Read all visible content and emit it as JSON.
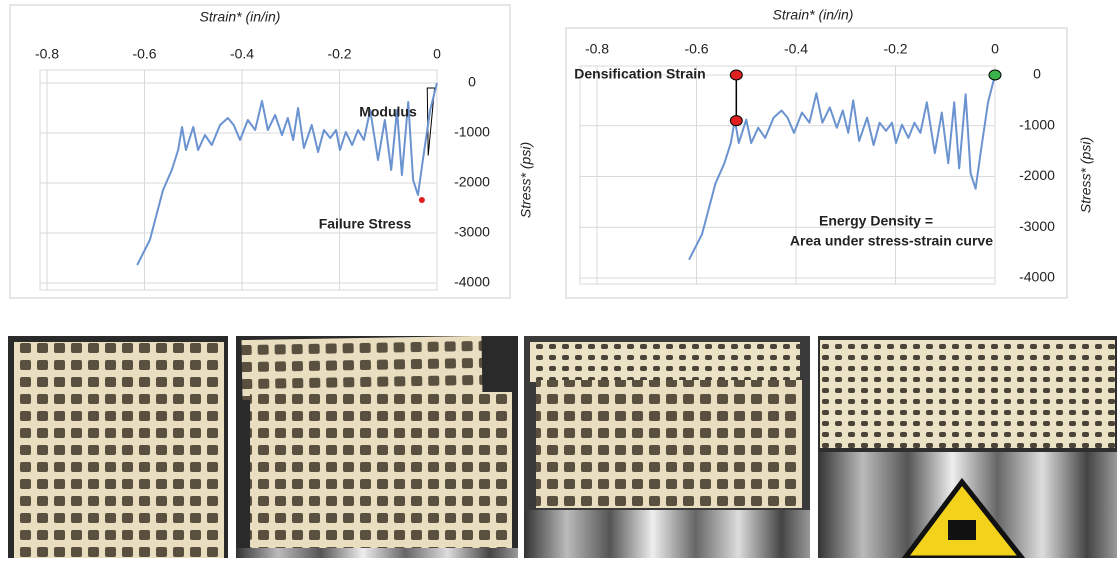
{
  "chart_data": [
    {
      "type": "line",
      "x_label": "Strain* (in/in)",
      "y_label": "Stress* (psi)",
      "xlim": [
        -0.8,
        0
      ],
      "xticks": [
        -0.8,
        -0.6,
        -0.4,
        -0.2,
        0
      ],
      "ylim": [
        -4000,
        0
      ],
      "yticks": [
        0,
        -1000,
        -2000,
        -3000,
        -4000
      ],
      "grid": true,
      "series": [
        {
          "color": "#6a93d0",
          "x": [
            -0.615,
            -0.589,
            -0.562,
            -0.544,
            -0.531,
            -0.523,
            -0.515,
            -0.5,
            -0.49,
            -0.476,
            -0.462,
            -0.445,
            -0.429,
            -0.417,
            -0.404,
            -0.388,
            -0.373,
            -0.359,
            -0.347,
            -0.332,
            -0.318,
            -0.306,
            -0.295,
            -0.285,
            -0.273,
            -0.257,
            -0.244,
            -0.232,
            -0.219,
            -0.207,
            -0.199,
            -0.187,
            -0.174,
            -0.162,
            -0.15,
            -0.137,
            -0.121,
            -0.107,
            -0.094,
            -0.082,
            -0.072,
            -0.059,
            -0.049,
            -0.039,
            -0.029,
            -0.014,
            0
          ],
          "values": [
            -3640,
            -3140,
            -2140,
            -1740,
            -1340,
            -880,
            -1340,
            -880,
            -1340,
            -1040,
            -1240,
            -840,
            -700,
            -840,
            -1140,
            -740,
            -940,
            -360,
            -940,
            -640,
            -1040,
            -700,
            -1140,
            -500,
            -1300,
            -840,
            -1380,
            -940,
            -1100,
            -940,
            -1340,
            -980,
            -1240,
            -940,
            -1140,
            -540,
            -1540,
            -740,
            -1740,
            -540,
            -1840,
            -380,
            -1940,
            -2240,
            -1540,
            -540,
            0
          ]
        }
      ],
      "markers": [
        {
          "x": -0.031,
          "y": -2340,
          "color": "#e02020"
        }
      ],
      "annotations": [
        "Modulus",
        "Failure Stress"
      ]
    },
    {
      "type": "line",
      "x_label": "Strain* (in/in)",
      "y_label": "Stress* (psi)",
      "xlim": [
        -0.8,
        0
      ],
      "xticks": [
        -0.8,
        -0.6,
        -0.4,
        -0.2,
        0
      ],
      "ylim": [
        -4000,
        0
      ],
      "yticks": [
        0,
        -1000,
        -2000,
        -3000,
        -4000
      ],
      "grid": true,
      "series": [
        {
          "color": "#6a93d0",
          "x": [
            -0.615,
            -0.589,
            -0.562,
            -0.544,
            -0.531,
            -0.523,
            -0.515,
            -0.5,
            -0.49,
            -0.476,
            -0.462,
            -0.445,
            -0.429,
            -0.417,
            -0.404,
            -0.388,
            -0.373,
            -0.359,
            -0.347,
            -0.332,
            -0.318,
            -0.306,
            -0.295,
            -0.285,
            -0.273,
            -0.257,
            -0.244,
            -0.232,
            -0.219,
            -0.207,
            -0.199,
            -0.187,
            -0.174,
            -0.162,
            -0.15,
            -0.137,
            -0.121,
            -0.107,
            -0.094,
            -0.082,
            -0.072,
            -0.059,
            -0.049,
            -0.039,
            -0.029,
            -0.014,
            0
          ],
          "values": [
            -3640,
            -3140,
            -2140,
            -1740,
            -1340,
            -880,
            -1340,
            -880,
            -1340,
            -1040,
            -1240,
            -840,
            -700,
            -840,
            -1140,
            -740,
            -940,
            -360,
            -940,
            -640,
            -1040,
            -700,
            -1140,
            -500,
            -1300,
            -840,
            -1380,
            -940,
            -1100,
            -940,
            -1340,
            -980,
            -1240,
            -940,
            -1140,
            -540,
            -1540,
            -740,
            -1740,
            -540,
            -1840,
            -380,
            -1940,
            -2240,
            -1540,
            -540,
            0
          ]
        }
      ],
      "markers": [
        {
          "x": -0.52,
          "y": 0,
          "color": "#e02020"
        },
        {
          "x": -0.52,
          "y": -900,
          "color": "#e02020"
        },
        {
          "x": 0,
          "y": 0,
          "color": "#3bb34a"
        }
      ],
      "annotations": [
        "Densification Strain",
        "Energy Density =",
        "Area under stress-strain curve"
      ]
    }
  ]
}
